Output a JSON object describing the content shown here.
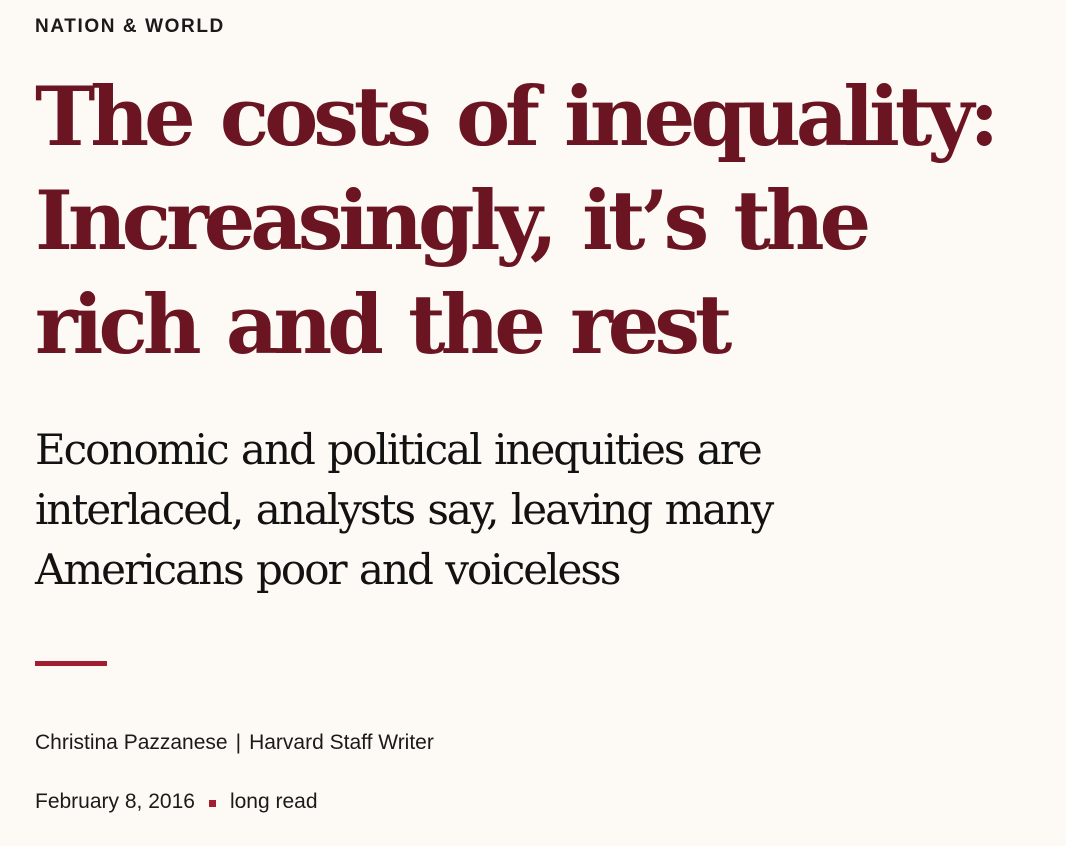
{
  "section": "NATION & WORLD",
  "headline": "The costs of inequality: Increasingly, it’s the rich and the rest",
  "dek": "Economic and political inequities are interlaced, analysts say, leaving many Americans poor and voiceless",
  "byline": {
    "author": "Christina Pazzanese",
    "separator": "|",
    "role": "Harvard Staff Writer"
  },
  "meta": {
    "date": "February 8, 2016",
    "read_type": "long read"
  },
  "colors": {
    "background": "#fdf9f4",
    "headline": "#6b1522",
    "accent": "#a11d2f",
    "text": "#1a1a1a"
  }
}
